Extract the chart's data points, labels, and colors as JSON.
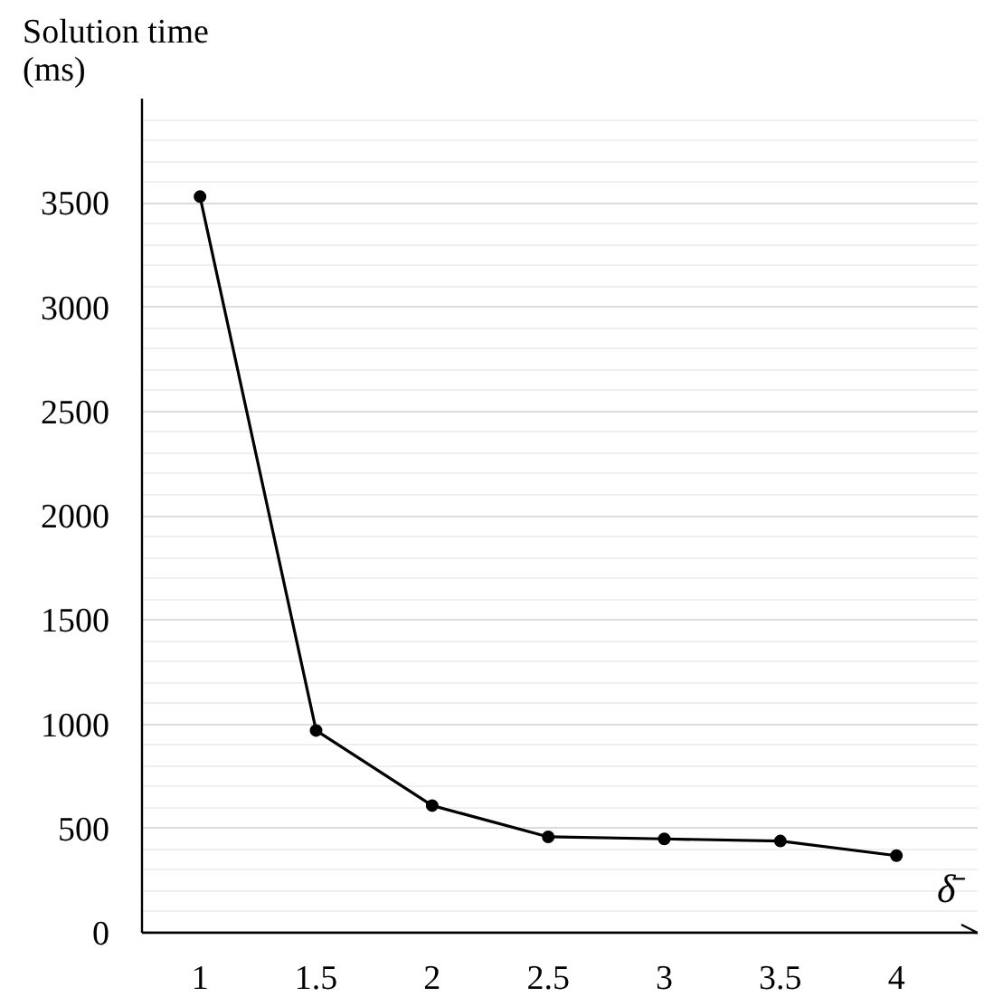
{
  "chart_data": {
    "type": "line",
    "ylabel": "Solution time (ms)",
    "xlabel": "δ̄",
    "categories": [
      "1",
      "1.5",
      "2",
      "2.5",
      "3",
      "3.5",
      "4"
    ],
    "series": [
      {
        "color": "#000000",
        "values": [
          3530,
          970,
          610,
          460,
          450,
          440,
          370
        ]
      }
    ],
    "ylim": [
      0,
      4000
    ],
    "yticks": [
      0,
      500,
      1000,
      1500,
      2000,
      2500,
      3000,
      3500
    ],
    "grid": "y",
    "marker": "circle",
    "line_style": "solid"
  }
}
